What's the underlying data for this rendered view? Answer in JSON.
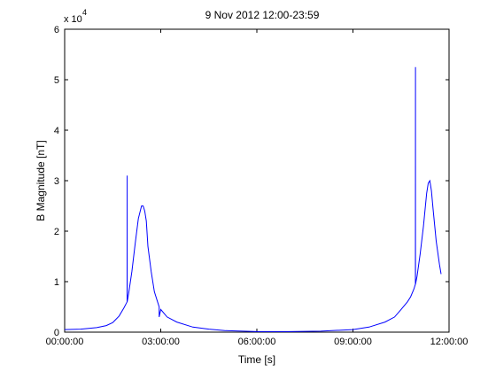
{
  "chart_data": {
    "type": "line",
    "title": "9 Nov 2012 12:00-23:59",
    "xlabel": "Time [s]",
    "ylabel": "B Magnitude [nT]",
    "y_exponent_label": "x 10",
    "y_exponent": "4",
    "xlim": [
      0,
      12
    ],
    "ylim": [
      0,
      6
    ],
    "x_unit": "hours",
    "y_unit": "1e4 nT",
    "x_ticks": [
      0,
      3,
      6,
      9,
      12
    ],
    "x_tick_labels": [
      "00:00:00",
      "03:00:00",
      "06:00:00",
      "09:00:00",
      "12:00:00"
    ],
    "y_ticks": [
      0,
      1,
      2,
      3,
      4,
      5,
      6
    ],
    "y_tick_labels": [
      "0",
      "1",
      "2",
      "3",
      "4",
      "5",
      "6"
    ],
    "grid": false,
    "line_color": "#0000ff",
    "series": [
      {
        "x": [
          0.0,
          0.5,
          1.0,
          1.3,
          1.5,
          1.7,
          1.85,
          1.95,
          1.951,
          1.952,
          2.0,
          2.1,
          2.2,
          2.3,
          2.4,
          2.45,
          2.5,
          2.55,
          2.6,
          2.7,
          2.8,
          2.9,
          2.95,
          2.951,
          3.0,
          3.2,
          3.5,
          4.0,
          4.5,
          5.0,
          6.0,
          7.0,
          8.0,
          9.0,
          9.5,
          10.0,
          10.3,
          10.5,
          10.7,
          10.8,
          10.9,
          10.95,
          10.951,
          10.952,
          11.0,
          11.1,
          11.2,
          11.3,
          11.35,
          11.4,
          11.45,
          11.5,
          11.6,
          11.7,
          11.75
        ],
        "y": [
          0.05,
          0.06,
          0.09,
          0.13,
          0.19,
          0.32,
          0.48,
          0.6,
          3.1,
          0.6,
          0.77,
          1.2,
          1.75,
          2.25,
          2.5,
          2.5,
          2.4,
          2.2,
          1.7,
          1.2,
          0.8,
          0.6,
          0.5,
          0.3,
          0.45,
          0.3,
          0.2,
          0.1,
          0.06,
          0.03,
          0.01,
          0.01,
          0.02,
          0.05,
          0.1,
          0.2,
          0.3,
          0.45,
          0.6,
          0.7,
          0.85,
          0.95,
          5.25,
          0.95,
          1.1,
          1.55,
          2.1,
          2.75,
          2.95,
          3.0,
          2.8,
          2.45,
          1.8,
          1.35,
          1.15
        ]
      }
    ]
  }
}
